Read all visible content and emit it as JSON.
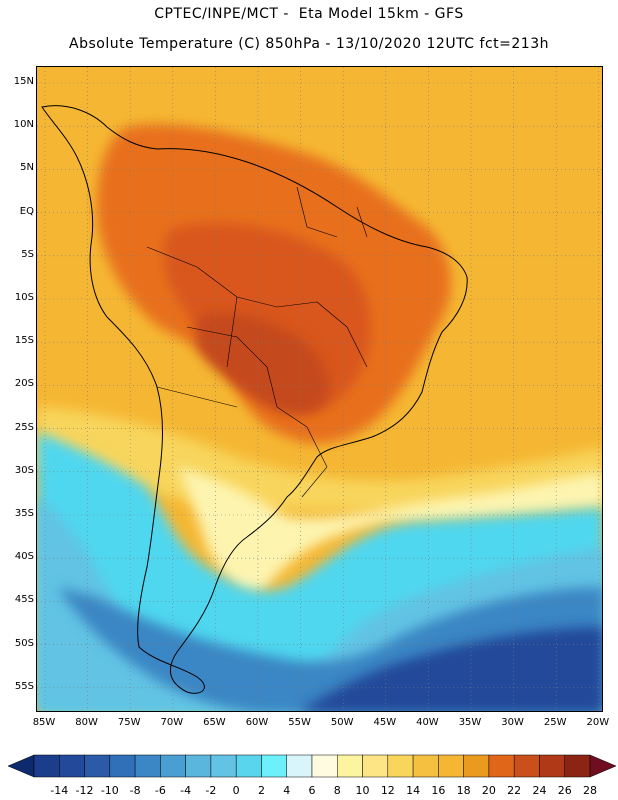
{
  "header": {
    "line1": "CPTEC/INPE/MCT -  Eta Model 15km - GFS",
    "line2": "Absolute Temperature (C) 850hPa - 13/10/2020 12UTC fct=213h"
  },
  "map": {
    "lat_labels": [
      "15N",
      "10N",
      "5N",
      "EQ",
      "5S",
      "10S",
      "15S",
      "20S",
      "25S",
      "30S",
      "35S",
      "40S",
      "45S",
      "50S",
      "55S"
    ],
    "lon_labels": [
      "85W",
      "80W",
      "75W",
      "70W",
      "65W",
      "60W",
      "55W",
      "50W",
      "45W",
      "40W",
      "35W",
      "30W",
      "25W",
      "20W"
    ],
    "field_colors": {
      "ocean_warm": "#f5b733",
      "land_hot": "#e86f1a",
      "land_hotter": "#d9571a",
      "land_hottest": "#c4481a",
      "mid_yellow": "#f8d55c",
      "pale": "#fdf4b0",
      "cyan": "#4fd7ef",
      "sky": "#62c3e4",
      "mid_blue": "#3b86c4",
      "deep_blue": "#22499a",
      "coast": "#000000"
    }
  },
  "colorbar": {
    "labels": [
      "-14",
      "-12",
      "-10",
      "-8",
      "-6",
      "-4",
      "-2",
      "0",
      "2",
      "4",
      "6",
      "8",
      "10",
      "12",
      "14",
      "16",
      "18",
      "20",
      "22",
      "24",
      "26",
      "28"
    ],
    "colors": [
      "#1c3c8c",
      "#22499a",
      "#2a5aa8",
      "#3070b8",
      "#3b86c4",
      "#4a9fd2",
      "#5ab6dd",
      "#62c3e4",
      "#5ad5ee",
      "#6ef0fa",
      "#d8f6fa",
      "#fffbe0",
      "#fdf4a0",
      "#fde585",
      "#fad55c",
      "#f5c040",
      "#f5b733",
      "#ea9a1f",
      "#e0661a",
      "#c9501a",
      "#b03a18",
      "#8c2414"
    ],
    "left_arrow_color": "#0e2a6e",
    "right_arrow_color": "#6e0e20"
  }
}
